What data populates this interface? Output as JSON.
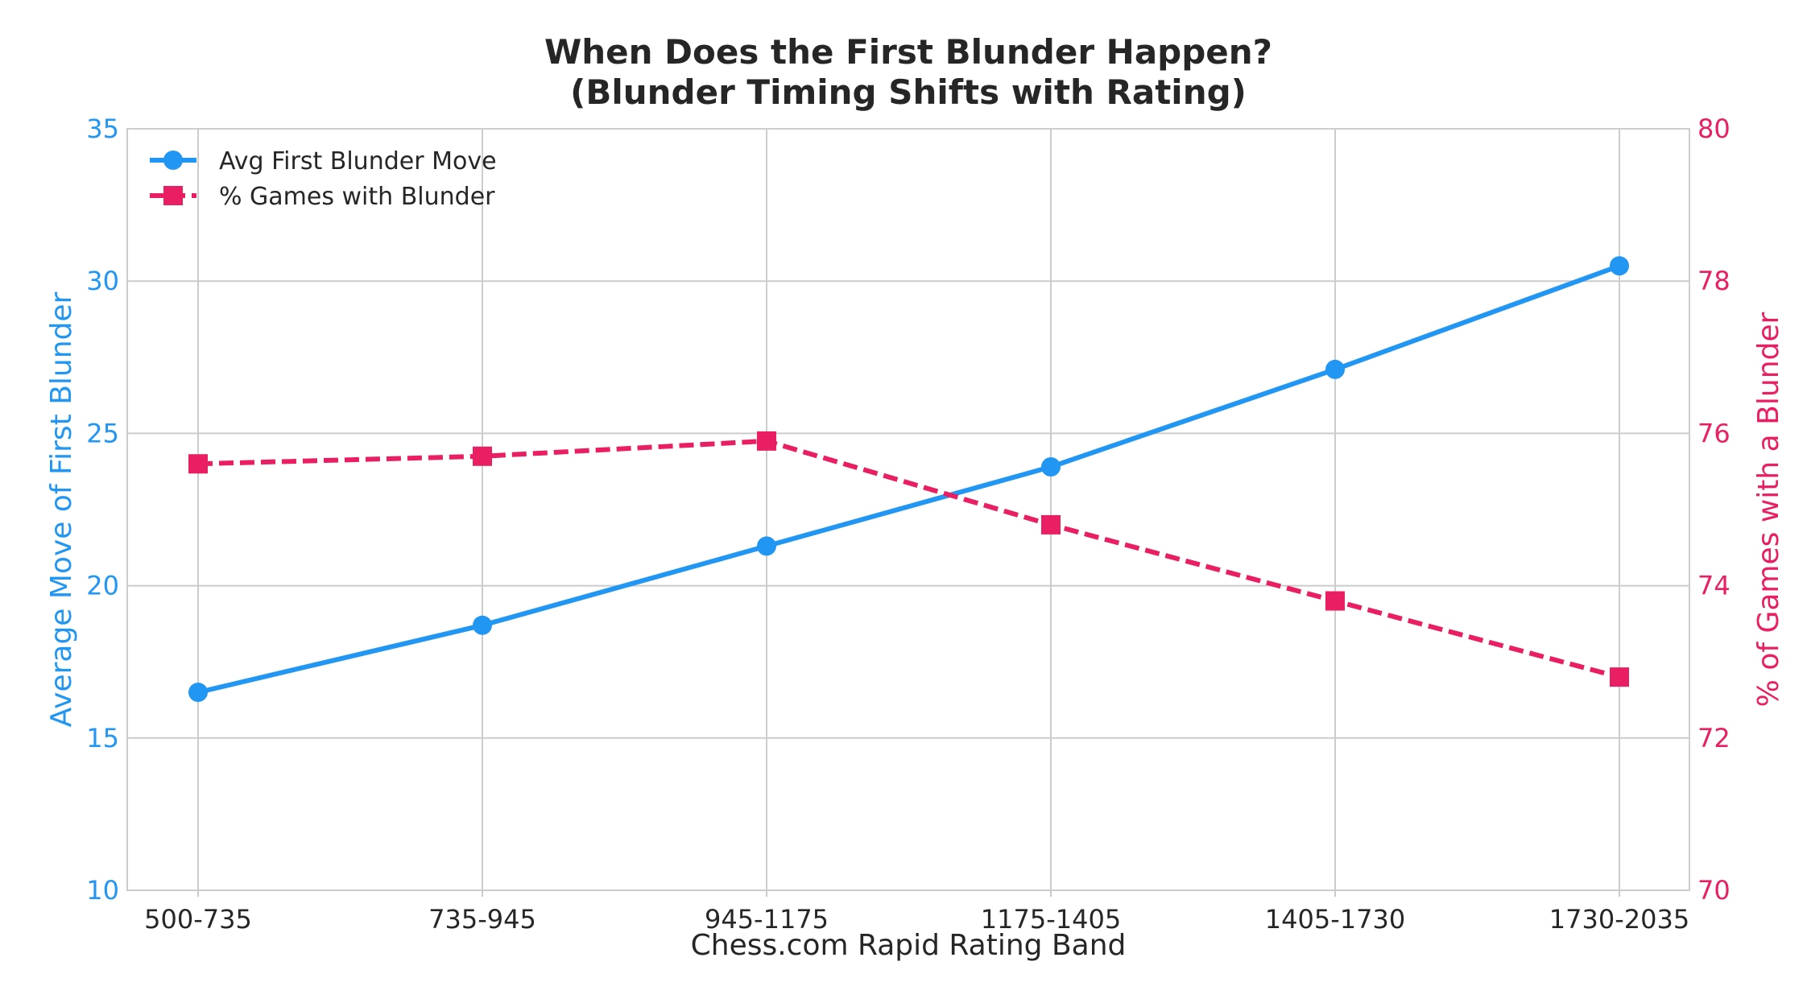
{
  "chart_data": {
    "type": "line",
    "title_lines": [
      "When Does the First Blunder Happen?",
      "(Blunder Timing Shifts with Rating)"
    ],
    "xlabel": "Chess.com Rapid Rating Band",
    "ylabel_left": "Average Move of First Blunder",
    "ylabel_right": "% of Games with a Blunder",
    "categories": [
      "500-735",
      "735-945",
      "945-1175",
      "1175-1405",
      "1405-1730",
      "1730-2035"
    ],
    "ylim_left": [
      10,
      35
    ],
    "yticks_left": [
      "10",
      "15",
      "20",
      "25",
      "30",
      "35"
    ],
    "ylim_right": [
      70,
      80
    ],
    "yticks_right": [
      "70",
      "72",
      "74",
      "76",
      "78",
      "80"
    ],
    "grid": true,
    "legend_position": "top-left",
    "series": [
      {
        "name": "Avg First Blunder Move",
        "axis": "left",
        "style": "solid",
        "marker": "circle",
        "color": "#2196F3",
        "values": [
          16.5,
          18.7,
          21.3,
          23.9,
          27.1,
          30.5
        ]
      },
      {
        "name": "% Games with Blunder",
        "axis": "right",
        "style": "dashed",
        "marker": "square",
        "color": "#E91E63",
        "values": [
          75.6,
          75.7,
          75.9,
          74.8,
          73.8,
          72.8
        ]
      }
    ]
  }
}
